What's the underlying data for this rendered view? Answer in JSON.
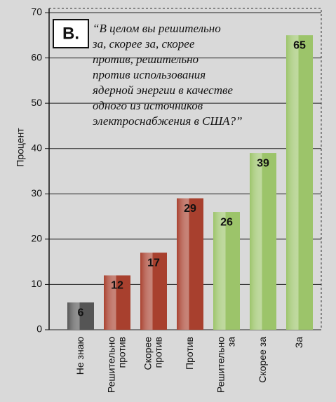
{
  "chart_data": {
    "type": "bar",
    "ylabel": "Процент",
    "annotation": {
      "label": "B.",
      "lines": [
        "“В целом вы решительно",
        "за, скорее за, скорее",
        "против, решительно",
        "против использования",
        "ядерной энергии в качестве",
        "одного из источников",
        "электроснабжения в США?”"
      ]
    },
    "categories": [
      "Не знаю",
      "Решительно\nпротив",
      "Скорее\nпротив",
      "Против",
      "Решительно\nза",
      "Скорее за",
      "За"
    ],
    "values": [
      6,
      12,
      17,
      29,
      26,
      39,
      65
    ],
    "colors": [
      "#555555",
      "#a8402e",
      "#a8402e",
      "#a8402e",
      "#9cc46a",
      "#9cc46a",
      "#9cc46a"
    ],
    "ylim": [
      0,
      70
    ],
    "yticks": [
      0,
      10,
      20,
      30,
      40,
      50,
      60,
      70
    ],
    "grid": true
  }
}
